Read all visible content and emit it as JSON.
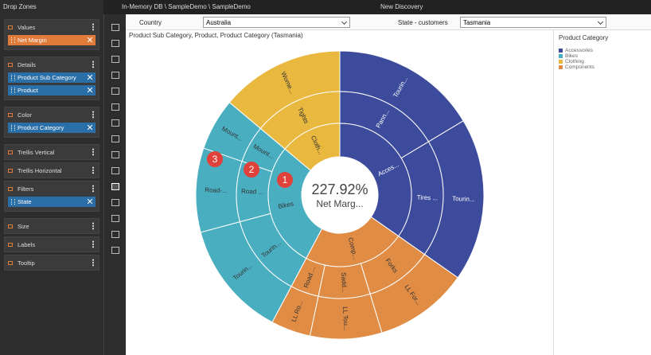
{
  "top_bar": {
    "path": "In-Memory DB \\ SampleDemo \\ SampleDemo",
    "title": "New Discovery"
  },
  "drop_zones": {
    "title": "Drop Zones",
    "sections": [
      {
        "label": "Values",
        "items": [
          {
            "label": "Net Margin",
            "color": "#e07b39"
          }
        ]
      },
      {
        "label": "Details",
        "items": [
          {
            "label": "Product Sub Category",
            "color": "#2a6fa8"
          },
          {
            "label": "Product",
            "color": "#2a6fa8"
          }
        ]
      },
      {
        "label": "Color",
        "items": [
          {
            "label": "Product Category",
            "color": "#2a6fa8"
          }
        ]
      },
      {
        "label": "Trellis Vertical"
      },
      {
        "label": "Trellis Horizontal"
      },
      {
        "label": "Filters",
        "items": [
          {
            "label": "State",
            "color": "#2a6fa8"
          }
        ]
      },
      {
        "label": "Size"
      },
      {
        "label": "Labels"
      },
      {
        "label": "Tooltip"
      }
    ]
  },
  "filters": [
    {
      "label": "Country",
      "value": "Australia"
    },
    {
      "label": "State - customers",
      "value": "Tasmania"
    }
  ],
  "chart_data": {
    "type": "sunburst",
    "subtitle": "Product Sub Category, Product, Product Category (Tasmania)",
    "center_value": "227.92%",
    "center_label": "Net Marg...",
    "legend_title": "Product Category",
    "callouts": [
      "1",
      "2",
      "3"
    ],
    "categories": [
      {
        "name": "Accessories",
        "label": "Acces...",
        "color": "#3d4b9c",
        "children": [
          {
            "label": "Pann...",
            "children": [
              {
                "label": "Tourin...",
                "size": 59
              }
            ]
          },
          {
            "label": "Tires ...",
            "children": [
              {
                "label": "Tourin...",
                "size": 66
              }
            ]
          }
        ]
      },
      {
        "name": "Components",
        "label": "Comp...",
        "color": "#e08c45",
        "children": [
          {
            "label": "Forks",
            "children": [
              {
                "label": "LL For...",
                "size": 38
              }
            ]
          },
          {
            "label": "Sadd...",
            "children": [
              {
                "label": "LL Tou...",
                "size": 29
              }
            ]
          },
          {
            "label": "Road ...",
            "children": [
              {
                "label": "LL Ro...",
                "size": 16
              }
            ]
          }
        ]
      },
      {
        "name": "Bikes",
        "label": "Bikes",
        "color": "#4aaec1",
        "children": [
          {
            "label": "Tourin...",
            "children": [
              {
                "label": "Tourin...",
                "size": 47
              }
            ]
          },
          {
            "label": "Road ...",
            "children": [
              {
                "label": "Road-...",
                "size": 34
              }
            ]
          },
          {
            "label": "Mount...",
            "children": [
              {
                "label": "Mount...",
                "size": 21
              }
            ]
          }
        ]
      },
      {
        "name": "Clothing",
        "label": "Cloth...",
        "color": "#e9b83f",
        "children": [
          {
            "label": "Tights",
            "children": [
              {
                "label": "Wome...",
                "size": 50
              }
            ]
          }
        ]
      }
    ]
  }
}
